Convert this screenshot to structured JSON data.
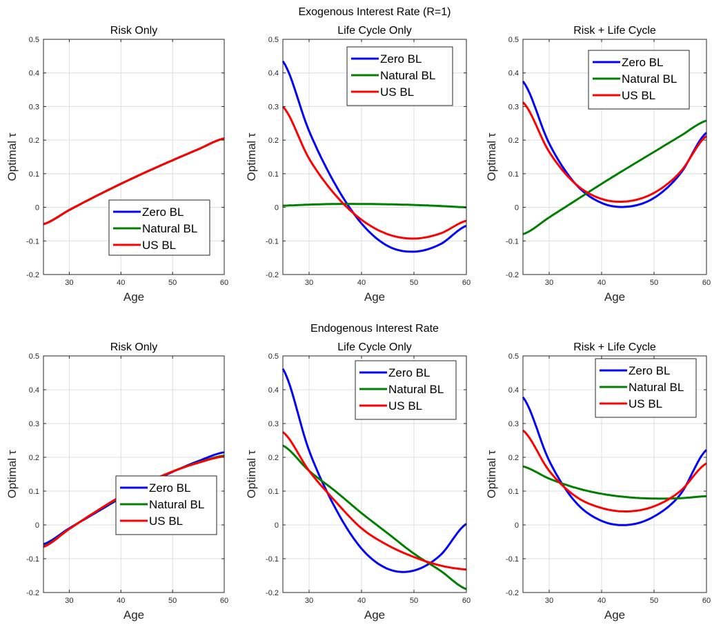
{
  "figure": {
    "suptitles": [
      "Exogenous Interest Rate (R=1)",
      "Endogenous Interest Rate"
    ]
  },
  "colors": {
    "Zero BL": "#0000ff",
    "Natural BL": "#007f00",
    "US BL": "#ff0000"
  },
  "chart_data": [
    {
      "type": "line",
      "title": "Risk Only",
      "xlabel": "Age",
      "ylabel": "Optimal τ",
      "xlim": [
        25,
        60
      ],
      "ylim": [
        -0.2,
        0.5
      ],
      "grid": true,
      "xticks": [
        30,
        40,
        50,
        60
      ],
      "yticks": [
        -0.2,
        -0.1,
        0,
        0.1,
        0.2,
        0.3,
        0.4,
        0.5
      ],
      "legend": "lower-right",
      "x": [
        25,
        30,
        35,
        40,
        45,
        50,
        55,
        60
      ],
      "series": [
        {
          "name": "Zero BL",
          "values": [
            -0.05,
            -0.008,
            0.032,
            0.07,
            0.106,
            0.14,
            0.173,
            0.205
          ]
        },
        {
          "name": "Natural BL",
          "values": [
            -0.05,
            -0.008,
            0.032,
            0.07,
            0.106,
            0.14,
            0.173,
            0.205
          ]
        },
        {
          "name": "US BL",
          "values": [
            -0.05,
            -0.008,
            0.032,
            0.07,
            0.106,
            0.14,
            0.173,
            0.205
          ]
        }
      ]
    },
    {
      "type": "line",
      "title": "Life Cycle Only",
      "xlabel": "Age",
      "ylabel": "Optimal τ",
      "xlim": [
        25,
        60
      ],
      "ylim": [
        -0.2,
        0.5
      ],
      "grid": true,
      "xticks": [
        30,
        40,
        50,
        60
      ],
      "yticks": [
        -0.2,
        -0.1,
        0,
        0.1,
        0.2,
        0.3,
        0.4,
        0.5
      ],
      "legend": "top-right",
      "x": [
        25,
        30,
        35,
        40,
        45,
        50,
        55,
        60
      ],
      "series": [
        {
          "name": "Zero BL",
          "values": [
            0.435,
            0.227,
            0.068,
            -0.048,
            -0.115,
            -0.132,
            -0.11,
            -0.055
          ]
        },
        {
          "name": "Natural BL",
          "values": [
            0.005,
            0.008,
            0.01,
            0.01,
            0.009,
            0.007,
            0.004,
            0.0
          ]
        },
        {
          "name": "US BL",
          "values": [
            0.3,
            0.145,
            0.037,
            -0.037,
            -0.08,
            -0.093,
            -0.078,
            -0.04
          ]
        }
      ]
    },
    {
      "type": "line",
      "title": "Risk + Life Cycle",
      "xlabel": "Age",
      "ylabel": "Optimal τ",
      "xlim": [
        25,
        60
      ],
      "ylim": [
        -0.2,
        0.5
      ],
      "grid": true,
      "xticks": [
        30,
        40,
        50,
        60
      ],
      "yticks": [
        -0.2,
        -0.1,
        0,
        0.1,
        0.2,
        0.3,
        0.4,
        0.5
      ],
      "legend": "top-right",
      "x": [
        25,
        30,
        35,
        40,
        45,
        50,
        55,
        60
      ],
      "series": [
        {
          "name": "Zero BL",
          "values": [
            0.375,
            0.19,
            0.07,
            0.013,
            0.002,
            0.028,
            0.1,
            0.222
          ]
        },
        {
          "name": "Natural BL",
          "values": [
            -0.08,
            -0.03,
            0.02,
            0.07,
            0.118,
            0.165,
            0.212,
            0.258
          ]
        },
        {
          "name": "US BL",
          "values": [
            0.313,
            0.165,
            0.07,
            0.025,
            0.018,
            0.043,
            0.105,
            0.212
          ]
        }
      ]
    },
    {
      "type": "line",
      "title": "Risk Only",
      "xlabel": "Age",
      "ylabel": "Optimal τ",
      "xlim": [
        25,
        60
      ],
      "ylim": [
        -0.2,
        0.5
      ],
      "grid": true,
      "xticks": [
        30,
        40,
        50,
        60
      ],
      "yticks": [
        -0.2,
        -0.1,
        0,
        0.1,
        0.2,
        0.3,
        0.4,
        0.5
      ],
      "legend": "lower-right",
      "x": [
        25,
        30,
        35,
        40,
        45,
        50,
        55,
        60
      ],
      "series": [
        {
          "name": "Zero BL",
          "values": [
            -0.057,
            -0.01,
            0.035,
            0.08,
            0.12,
            0.157,
            0.189,
            0.215
          ]
        },
        {
          "name": "Natural BL",
          "values": [
            -0.063,
            -0.012,
            0.038,
            0.083,
            0.123,
            0.158,
            0.185,
            0.205
          ]
        },
        {
          "name": "US BL",
          "values": [
            -0.065,
            -0.012,
            0.038,
            0.085,
            0.125,
            0.158,
            0.184,
            0.203
          ]
        }
      ]
    },
    {
      "type": "line",
      "title": "Life Cycle Only",
      "xlabel": "Age",
      "ylabel": "Optimal τ",
      "xlim": [
        25,
        60
      ],
      "ylim": [
        -0.2,
        0.5
      ],
      "grid": true,
      "xticks": [
        30,
        40,
        50,
        60
      ],
      "yticks": [
        -0.2,
        -0.1,
        0,
        0.1,
        0.2,
        0.3,
        0.4,
        0.5
      ],
      "legend": "top-right",
      "x": [
        25,
        30,
        35,
        40,
        45,
        50,
        55,
        60
      ],
      "series": [
        {
          "name": "Zero BL",
          "values": [
            0.462,
            0.22,
            0.05,
            -0.07,
            -0.13,
            -0.135,
            -0.09,
            0.003
          ]
        },
        {
          "name": "Natural BL",
          "values": [
            0.235,
            0.16,
            0.1,
            0.035,
            -0.025,
            -0.085,
            -0.135,
            -0.19
          ]
        },
        {
          "name": "US BL",
          "values": [
            0.275,
            0.16,
            0.07,
            -0.01,
            -0.06,
            -0.095,
            -0.12,
            -0.132
          ]
        }
      ]
    },
    {
      "type": "line",
      "title": "Risk + Life Cycle",
      "xlabel": "Age",
      "ylabel": "Optimal τ",
      "xlim": [
        25,
        60
      ],
      "ylim": [
        -0.2,
        0.5
      ],
      "grid": true,
      "xticks": [
        30,
        40,
        50,
        60
      ],
      "yticks": [
        -0.2,
        -0.1,
        0,
        0.1,
        0.2,
        0.3,
        0.4,
        0.5
      ],
      "legend": "top-right",
      "x": [
        25,
        30,
        35,
        40,
        45,
        50,
        55,
        60
      ],
      "series": [
        {
          "name": "Zero BL",
          "values": [
            0.378,
            0.19,
            0.068,
            0.012,
            0.0,
            0.025,
            0.09,
            0.222
          ]
        },
        {
          "name": "Natural BL",
          "values": [
            0.173,
            0.137,
            0.11,
            0.092,
            0.082,
            0.078,
            0.079,
            0.085
          ]
        },
        {
          "name": "US BL",
          "values": [
            0.28,
            0.16,
            0.085,
            0.05,
            0.04,
            0.055,
            0.1,
            0.182
          ]
        }
      ]
    }
  ]
}
